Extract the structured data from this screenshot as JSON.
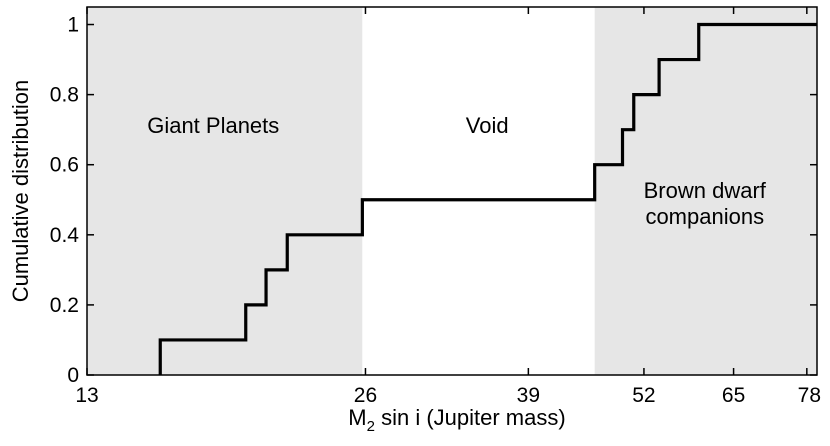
{
  "chart_data": {
    "type": "line",
    "step": true,
    "title": "",
    "xlabel": "M",
    "xlabel_sub": "2",
    "xlabel_rest": " sin i  (Jupiter mass)",
    "ylabel": "Cumulative distribution",
    "xscale": "log",
    "xlim": [
      13,
      80
    ],
    "ylim": [
      0,
      1.05
    ],
    "xticks": [
      13,
      26,
      39,
      52,
      65,
      78
    ],
    "xtick_labels": [
      "13",
      "26",
      "39",
      "52",
      "65",
      "78"
    ],
    "yticks": [
      0,
      0.2,
      0.4,
      0.6,
      0.8,
      1
    ],
    "ytick_labels": [
      "0",
      "0.2",
      "0.4",
      "0.6",
      "0.8",
      "1"
    ],
    "grid": false,
    "series": [
      {
        "color": "#000000",
        "x": [
          15.6,
          15.6,
          19.3,
          19.3,
          20.3,
          20.3,
          21.4,
          21.4,
          25.8,
          25.8,
          46.0,
          46.0,
          49.3,
          49.3,
          50.7,
          50.7,
          54.0,
          54.0,
          59.6,
          59.6,
          80
        ],
        "y": [
          0,
          0.1,
          0.1,
          0.2,
          0.2,
          0.3,
          0.3,
          0.4,
          0.4,
          0.5,
          0.5,
          0.6,
          0.6,
          0.7,
          0.7,
          0.8,
          0.8,
          0.9,
          0.9,
          1.0,
          1.0
        ]
      }
    ],
    "regions": [
      {
        "x0": 13,
        "x1": 25.8,
        "color": "#e6e6e6",
        "label_lines": [
          "Giant Planets"
        ],
        "label_x": 17.8,
        "label_y": 0.69
      },
      {
        "x0": 25.8,
        "x1": 46.0,
        "color": "#ffffff",
        "label_lines": [
          "Void"
        ],
        "label_x": 35.2,
        "label_y": 0.69
      },
      {
        "x0": 46.0,
        "x1": 80,
        "color": "#e6e6e6",
        "label_lines": [
          "Brown dwarf",
          "companions"
        ],
        "label_x": 60.5,
        "label_y": 0.505
      }
    ]
  }
}
